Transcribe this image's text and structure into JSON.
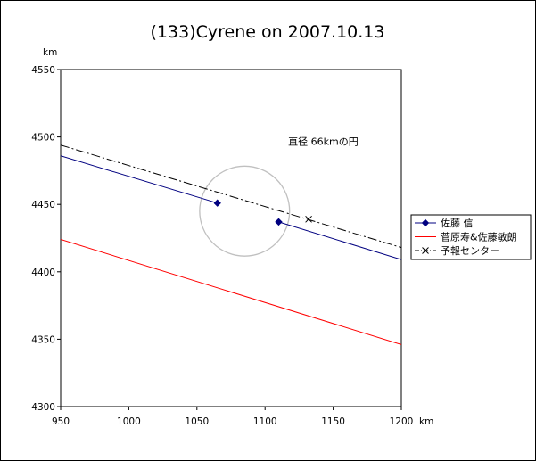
{
  "chart_data": {
    "type": "scatter",
    "title": "(133)Cyrene on 2007.10.13",
    "xlabel": "km",
    "ylabel": "km",
    "xlim": [
      950,
      1200
    ],
    "ylim": [
      4300,
      4550
    ],
    "x_ticks": [
      950,
      1000,
      1050,
      1100,
      1150,
      1200
    ],
    "y_ticks": [
      4300,
      4350,
      4400,
      4450,
      4500,
      4550
    ],
    "grid": false,
    "legend_position": "right",
    "annotation": {
      "text": "直径 66kmの円",
      "x": 1117,
      "y": 4494
    },
    "circle": {
      "center_x": 1085,
      "center_y": 4445,
      "diameter_km": 66,
      "color": "#c0c0c0"
    },
    "series": [
      {
        "name": "佐藤 信",
        "color": "#000080",
        "line_style": "solid",
        "marker": "diamond",
        "segments": [
          {
            "x": [
              950,
              1065
            ],
            "y": [
              4486,
              4451
            ]
          },
          {
            "x": [
              1110,
              1200
            ],
            "y": [
              4437,
              4409
            ]
          }
        ],
        "points": [
          {
            "x": 1065,
            "y": 4451
          },
          {
            "x": 1110,
            "y": 4437
          }
        ]
      },
      {
        "name": "菅原寿&佐藤敏朗",
        "color": "#ff0000",
        "line_style": "solid",
        "marker": "none",
        "segments": [
          {
            "x": [
              950,
              1200
            ],
            "y": [
              4424,
              4346
            ]
          }
        ],
        "points": []
      },
      {
        "name": "予報センター",
        "color": "#000000",
        "line_style": "dashdot",
        "marker": "x",
        "segments": [
          {
            "x": [
              950,
              1200
            ],
            "y": [
              4494,
              4418
            ]
          }
        ],
        "points": [
          {
            "x": 1132,
            "y": 4439
          }
        ]
      }
    ]
  }
}
